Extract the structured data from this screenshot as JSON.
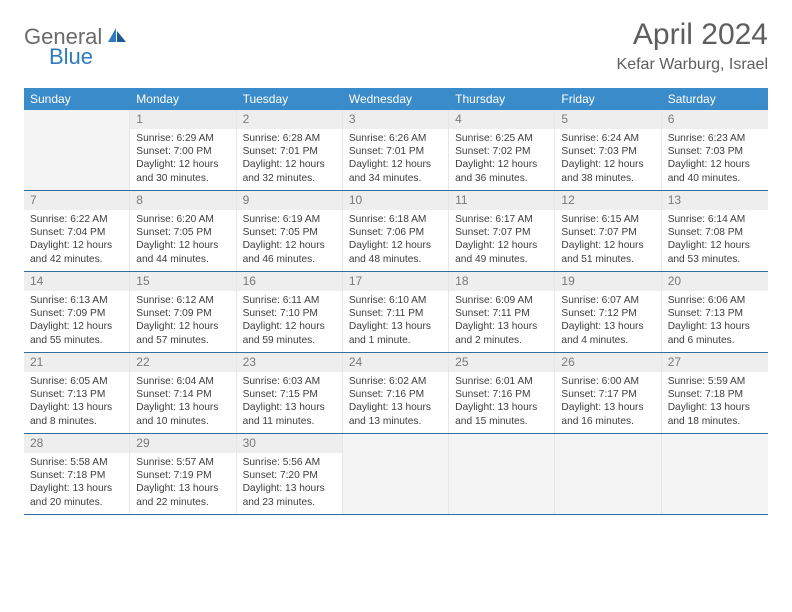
{
  "logo": {
    "text1": "General",
    "text2": "Blue"
  },
  "title": "April 2024",
  "location": "Kefar Warburg, Israel",
  "colors": {
    "header_bg": "#3a8bc9",
    "header_text": "#ffffff",
    "logo_gray": "#6b6b6b",
    "logo_blue": "#2f7bbf",
    "title_gray": "#5e5e5e",
    "week_border": "#2f6fa3",
    "cell_border": "#e7e7e7",
    "daynum_bg": "#eeeeee",
    "daynum_text": "#7a7a7a",
    "body_text": "#3e3e3e",
    "empty_bg": "#f4f4f4"
  },
  "dow": [
    "Sunday",
    "Monday",
    "Tuesday",
    "Wednesday",
    "Thursday",
    "Friday",
    "Saturday"
  ],
  "weeks": [
    [
      {
        "empty": true
      },
      {
        "day": "1",
        "sunrise": "6:29 AM",
        "sunset": "7:00 PM",
        "daylight": "12 hours and 30 minutes."
      },
      {
        "day": "2",
        "sunrise": "6:28 AM",
        "sunset": "7:01 PM",
        "daylight": "12 hours and 32 minutes."
      },
      {
        "day": "3",
        "sunrise": "6:26 AM",
        "sunset": "7:01 PM",
        "daylight": "12 hours and 34 minutes."
      },
      {
        "day": "4",
        "sunrise": "6:25 AM",
        "sunset": "7:02 PM",
        "daylight": "12 hours and 36 minutes."
      },
      {
        "day": "5",
        "sunrise": "6:24 AM",
        "sunset": "7:03 PM",
        "daylight": "12 hours and 38 minutes."
      },
      {
        "day": "6",
        "sunrise": "6:23 AM",
        "sunset": "7:03 PM",
        "daylight": "12 hours and 40 minutes."
      }
    ],
    [
      {
        "day": "7",
        "sunrise": "6:22 AM",
        "sunset": "7:04 PM",
        "daylight": "12 hours and 42 minutes."
      },
      {
        "day": "8",
        "sunrise": "6:20 AM",
        "sunset": "7:05 PM",
        "daylight": "12 hours and 44 minutes."
      },
      {
        "day": "9",
        "sunrise": "6:19 AM",
        "sunset": "7:05 PM",
        "daylight": "12 hours and 46 minutes."
      },
      {
        "day": "10",
        "sunrise": "6:18 AM",
        "sunset": "7:06 PM",
        "daylight": "12 hours and 48 minutes."
      },
      {
        "day": "11",
        "sunrise": "6:17 AM",
        "sunset": "7:07 PM",
        "daylight": "12 hours and 49 minutes."
      },
      {
        "day": "12",
        "sunrise": "6:15 AM",
        "sunset": "7:07 PM",
        "daylight": "12 hours and 51 minutes."
      },
      {
        "day": "13",
        "sunrise": "6:14 AM",
        "sunset": "7:08 PM",
        "daylight": "12 hours and 53 minutes."
      }
    ],
    [
      {
        "day": "14",
        "sunrise": "6:13 AM",
        "sunset": "7:09 PM",
        "daylight": "12 hours and 55 minutes."
      },
      {
        "day": "15",
        "sunrise": "6:12 AM",
        "sunset": "7:09 PM",
        "daylight": "12 hours and 57 minutes."
      },
      {
        "day": "16",
        "sunrise": "6:11 AM",
        "sunset": "7:10 PM",
        "daylight": "12 hours and 59 minutes."
      },
      {
        "day": "17",
        "sunrise": "6:10 AM",
        "sunset": "7:11 PM",
        "daylight": "13 hours and 1 minute."
      },
      {
        "day": "18",
        "sunrise": "6:09 AM",
        "sunset": "7:11 PM",
        "daylight": "13 hours and 2 minutes."
      },
      {
        "day": "19",
        "sunrise": "6:07 AM",
        "sunset": "7:12 PM",
        "daylight": "13 hours and 4 minutes."
      },
      {
        "day": "20",
        "sunrise": "6:06 AM",
        "sunset": "7:13 PM",
        "daylight": "13 hours and 6 minutes."
      }
    ],
    [
      {
        "day": "21",
        "sunrise": "6:05 AM",
        "sunset": "7:13 PM",
        "daylight": "13 hours and 8 minutes."
      },
      {
        "day": "22",
        "sunrise": "6:04 AM",
        "sunset": "7:14 PM",
        "daylight": "13 hours and 10 minutes."
      },
      {
        "day": "23",
        "sunrise": "6:03 AM",
        "sunset": "7:15 PM",
        "daylight": "13 hours and 11 minutes."
      },
      {
        "day": "24",
        "sunrise": "6:02 AM",
        "sunset": "7:16 PM",
        "daylight": "13 hours and 13 minutes."
      },
      {
        "day": "25",
        "sunrise": "6:01 AM",
        "sunset": "7:16 PM",
        "daylight": "13 hours and 15 minutes."
      },
      {
        "day": "26",
        "sunrise": "6:00 AM",
        "sunset": "7:17 PM",
        "daylight": "13 hours and 16 minutes."
      },
      {
        "day": "27",
        "sunrise": "5:59 AM",
        "sunset": "7:18 PM",
        "daylight": "13 hours and 18 minutes."
      }
    ],
    [
      {
        "day": "28",
        "sunrise": "5:58 AM",
        "sunset": "7:18 PM",
        "daylight": "13 hours and 20 minutes."
      },
      {
        "day": "29",
        "sunrise": "5:57 AM",
        "sunset": "7:19 PM",
        "daylight": "13 hours and 22 minutes."
      },
      {
        "day": "30",
        "sunrise": "5:56 AM",
        "sunset": "7:20 PM",
        "daylight": "13 hours and 23 minutes."
      },
      {
        "empty": true
      },
      {
        "empty": true
      },
      {
        "empty": true
      },
      {
        "empty": true
      }
    ]
  ],
  "labels": {
    "sunrise": "Sunrise:",
    "sunset": "Sunset:",
    "daylight": "Daylight:"
  }
}
